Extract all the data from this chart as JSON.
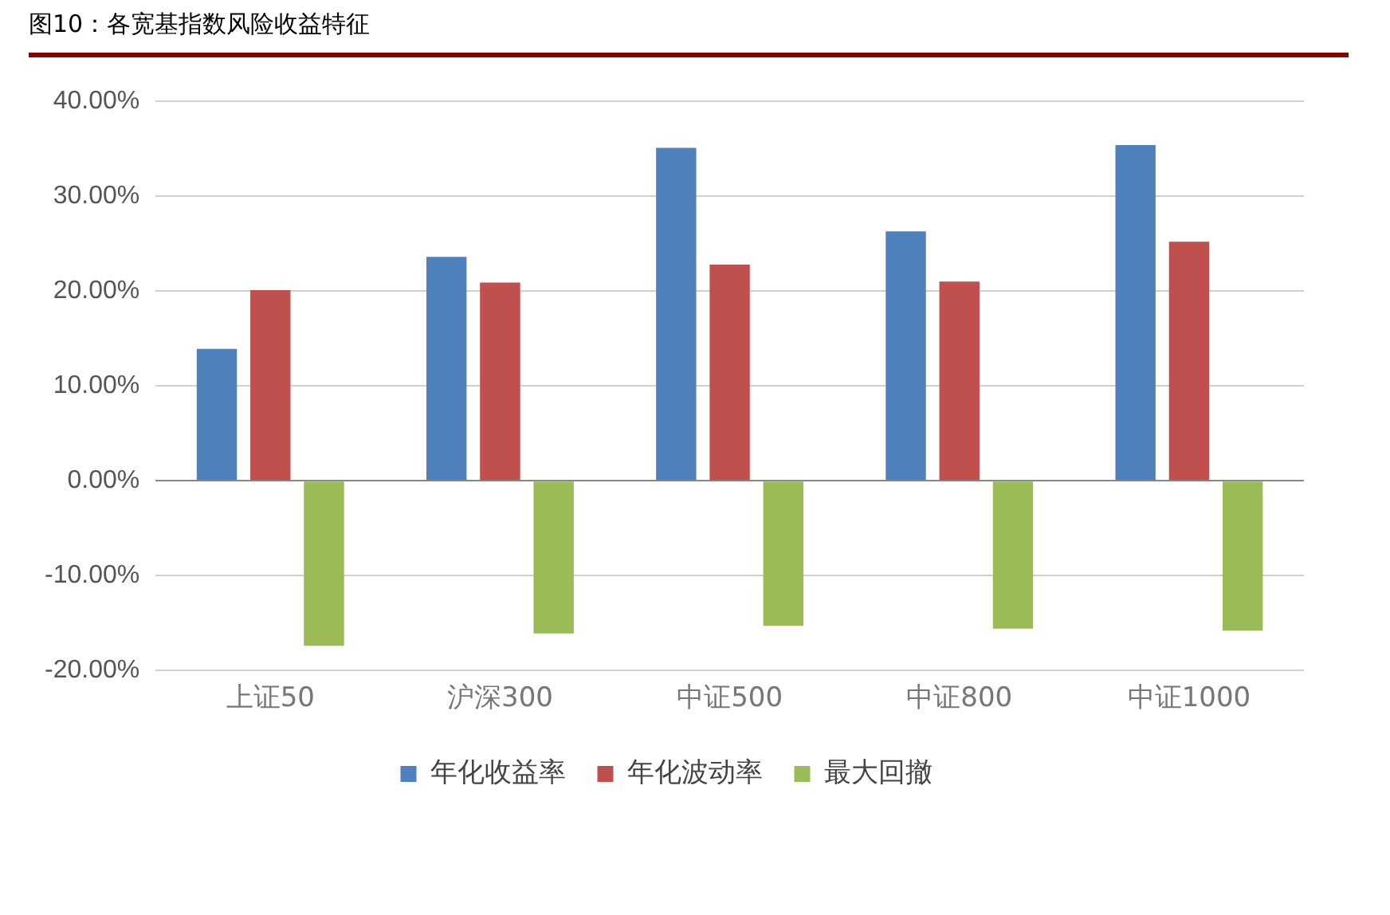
{
  "chart_data": {
    "type": "bar",
    "title": "图10：各宽基指数风险收益特征",
    "categories": [
      "上证50",
      "沪深300",
      "中证500",
      "中证800",
      "中证1000"
    ],
    "series": [
      {
        "name": "年化收益率",
        "color": "#4f81bd",
        "values": [
          13.9,
          23.6,
          35.1,
          26.3,
          35.4
        ]
      },
      {
        "name": "年化波动率",
        "color": "#c0504d",
        "values": [
          20.1,
          20.9,
          22.8,
          21.0,
          25.2
        ]
      },
      {
        "name": "最大回撤",
        "color": "#9bbb59",
        "values": [
          -17.4,
          -16.1,
          -15.3,
          -15.6,
          -15.8
        ]
      }
    ],
    "ylim": [
      -20,
      40
    ],
    "yticks": [
      {
        "value": -20,
        "label": "-20.00%"
      },
      {
        "value": -10,
        "label": "-10.00%"
      },
      {
        "value": 0,
        "label": "0.00%"
      },
      {
        "value": 10,
        "label": "10.00%"
      },
      {
        "value": 20,
        "label": "20.00%"
      },
      {
        "value": 30,
        "label": "30.00%"
      },
      {
        "value": 40,
        "label": "40.00%"
      }
    ],
    "grid": "y",
    "legend": "bottom"
  }
}
